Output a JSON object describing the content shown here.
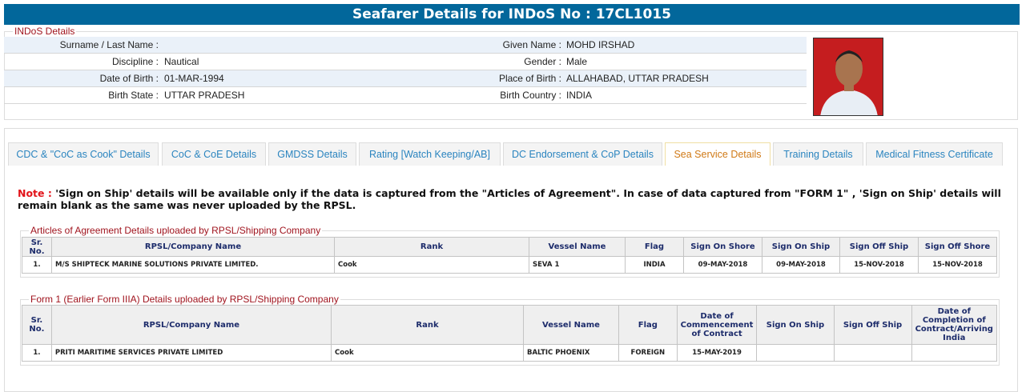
{
  "header": {
    "title": "Seafarer Details for INDoS No : 17CL1015"
  },
  "indos": {
    "legend": "INDoS Details",
    "rows": [
      {
        "l1": "Surname / Last Name :",
        "v1": "",
        "l2": "Given Name :",
        "v2": "MOHD IRSHAD"
      },
      {
        "l1": "Discipline :",
        "v1": "Nautical",
        "l2": "Gender :",
        "v2": "Male"
      },
      {
        "l1": "Date of Birth :",
        "v1": "01-MAR-1994",
        "l2": "Place of Birth :",
        "v2": "ALLAHABAD, UTTAR PRADESH"
      },
      {
        "l1": "Birth State :",
        "v1": "UTTAR PRADESH",
        "l2": "Birth Country :",
        "v2": "INDIA"
      }
    ]
  },
  "tabs": [
    "CDC & \"CoC as Cook\" Details",
    "CoC & CoE Details",
    "GMDSS Details",
    "Rating [Watch Keeping/AB]",
    "DC Endorsement & CoP Details",
    "Sea Service Details",
    "Training Details",
    "Medical Fitness Certificate"
  ],
  "active_tab": "Sea Service Details",
  "note": {
    "label": "Note : ",
    "text": "'Sign on Ship' details will be available only if the data is captured from the \"Articles of Agreement\". In case of data captured from \"FORM 1\" , 'Sign on Ship' details will remain blank as the same was never uploaded by the RPSL."
  },
  "aoa": {
    "legend": "Articles of Agreement Details uploaded by RPSL/Shipping Company",
    "headers": [
      "Sr. No.",
      "RPSL/Company Name",
      "Rank",
      "Vessel Name",
      "Flag",
      "Sign On Shore",
      "Sign On Ship",
      "Sign Off Ship",
      "Sign Off Shore"
    ],
    "rows": [
      [
        "1.",
        "M/S SHIPTECK MARINE SOLUTIONS PRIVATE LIMITED.",
        "Cook",
        "SEVA 1",
        "INDIA",
        "09-MAY-2018",
        "09-MAY-2018",
        "15-NOV-2018",
        "15-NOV-2018"
      ]
    ]
  },
  "form1": {
    "legend": "Form 1 (Earlier Form IIIA) Details uploaded by RPSL/Shipping Company",
    "headers": [
      "Sr. No.",
      "RPSL/Company Name",
      "Rank",
      "Vessel Name",
      "Flag",
      "Date of Commencement of Contract",
      "Sign On Ship",
      "Sign Off Ship",
      "Date of Completion of Contract/Arriving India"
    ],
    "rows": [
      [
        "1.",
        "PRITI MARITIME SERVICES PRIVATE LIMITED",
        "Cook",
        "BALTIC PHOENIX",
        "FOREIGN",
        "15-MAY-2019",
        "",
        "",
        ""
      ]
    ]
  },
  "colors": {
    "header": "#02679b",
    "legend": "#a0141e",
    "tab_text": "#2a84bf",
    "active_tab": "#d07a17",
    "note_label": "#e2141a"
  }
}
